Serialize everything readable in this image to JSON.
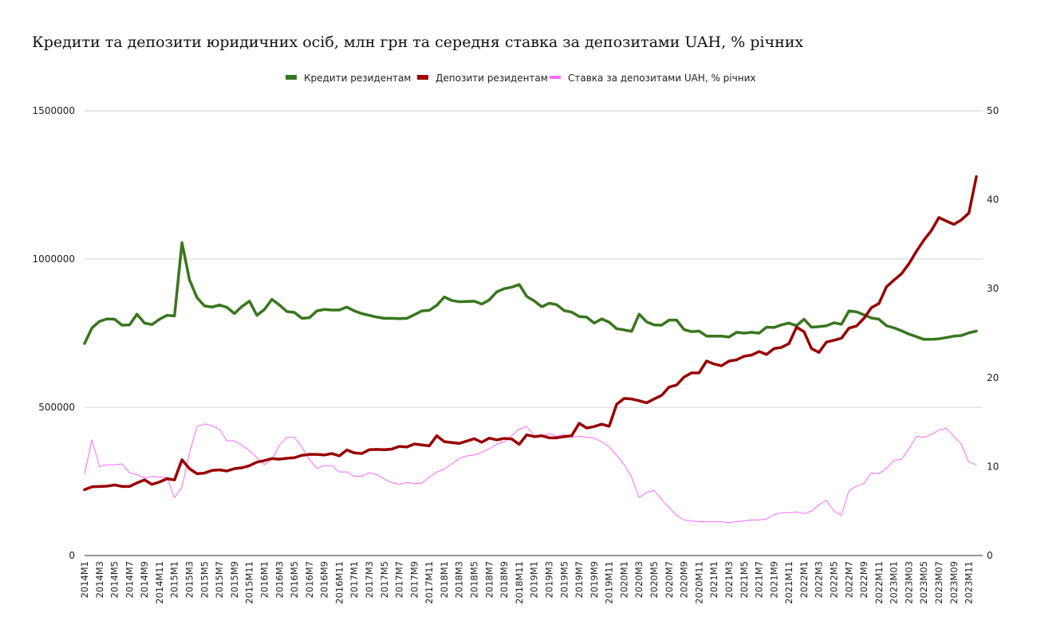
{
  "chart_data": {
    "type": "line",
    "title": "Кредити та депозити юридичних осіб, млн грн та середня ставка за депозитами UAH, % річних",
    "legend_position": "top-center",
    "x": [
      "2014M1",
      "2014M2",
      "2014M3",
      "2014M4",
      "2014M5",
      "2014M6",
      "2014M7",
      "2014M8",
      "2014M9",
      "2014M10",
      "2014M11",
      "2014M12",
      "2015M1",
      "2015M2",
      "2015M3",
      "2015M4",
      "2015M5",
      "2015M6",
      "2015M7",
      "2015M8",
      "2015M9",
      "2015M10",
      "2015M11",
      "2015M12",
      "2016M1",
      "2016M2",
      "2016M3",
      "2016M4",
      "2016M5",
      "2016M6",
      "2016M7",
      "2016M8",
      "2016M9",
      "2016M10",
      "2016M11",
      "2016M12",
      "2017M1",
      "2017M2",
      "2017M3",
      "2017M4",
      "2017M5",
      "2017M6",
      "2017M7",
      "2017M8",
      "2017M9",
      "2017M10",
      "2017M11",
      "2017M12",
      "2018M1",
      "2018M2",
      "2018M3",
      "2018M4",
      "2018M5",
      "2018M6",
      "2018M7",
      "2018M8",
      "2018M9",
      "2018M10",
      "2018M11",
      "2018M12",
      "2019M1",
      "2019M2",
      "2019M3",
      "2019M4",
      "2019M5",
      "2019M6",
      "2019M7",
      "2019M8",
      "2019M9",
      "2019M10",
      "2019M11",
      "2019M12",
      "2020M1",
      "2020M2",
      "2020M3",
      "2020M4",
      "2020M5",
      "2020M6",
      "2020M7",
      "2020M8",
      "2020M9",
      "2020M10",
      "2020M11",
      "2020M12",
      "2021M1",
      "2021M2",
      "2021M3",
      "2021M4",
      "2021M5",
      "2021M6",
      "2021M7",
      "2021M8",
      "2021M9",
      "2021M10",
      "2021M11",
      "2021M12",
      "2022M1",
      "2022M2",
      "2022M3",
      "2022M4",
      "2022M5",
      "2022M6",
      "2022M7",
      "2022M8",
      "2022M9",
      "2022M10",
      "2022M11",
      "2022M12",
      "2023M1",
      "2023M2",
      "2023M3",
      "2023M4",
      "2023M5",
      "2023M6",
      "2023M7",
      "2023M8",
      "2023M9",
      "2023M10",
      "2023M11",
      "2023M12"
    ],
    "x_tick_labels": [
      "2014M1",
      "2014M3",
      "2014M5",
      "2014M7",
      "2014M9",
      "2014M11",
      "2015M1",
      "2015M3",
      "2015M5",
      "2015M7",
      "2015M9",
      "2015M11",
      "2016M1",
      "2016M3",
      "2016M5",
      "2016M7",
      "2016M9",
      "2016M11",
      "2017M1",
      "2017M3",
      "2017M5",
      "2017M7",
      "2017M9",
      "2017M11",
      "2018M1",
      "2018M3",
      "2018M5",
      "2018M7",
      "2018M9",
      "2018M11",
      "2019M1",
      "2019M3",
      "2019M5",
      "2019M7",
      "2019M9",
      "2019M11",
      "2020M1",
      "2020M3",
      "2020M5",
      "2020M7",
      "2020M9",
      "2020M11",
      "2021M1",
      "2021M3",
      "2021M5",
      "2021M7",
      "2021M9",
      "2021M11",
      "2022M1",
      "2022M3",
      "2022M5",
      "2022M7",
      "2022M9",
      "2022M11",
      "2023M01",
      "2023M03",
      "2023M05",
      "2023M07",
      "2023M09",
      "2023M11"
    ],
    "y_left": {
      "min": 0,
      "max": 1500000,
      "ticks": [
        0,
        500000,
        1000000,
        1500000
      ],
      "tick_labels": [
        "0",
        "500000",
        "1000000",
        "1500000"
      ]
    },
    "y_right": {
      "min": 0,
      "max": 50,
      "ticks": [
        0,
        10,
        20,
        30,
        40,
        50
      ],
      "tick_labels": [
        "0",
        "10",
        "20",
        "30",
        "40",
        "50"
      ]
    },
    "grid": true,
    "series": [
      {
        "name": "Кредити резидентам",
        "axis": "left",
        "color": "#38761d",
        "width": 3.5,
        "values": [
          715000,
          768000,
          790000,
          798000,
          797000,
          777000,
          778000,
          814000,
          784000,
          779000,
          797000,
          810000,
          808000,
          1055000,
          930000,
          870000,
          842000,
          838000,
          845000,
          837000,
          816000,
          840000,
          858000,
          810000,
          830000,
          864000,
          845000,
          823000,
          820000,
          800000,
          802000,
          825000,
          830000,
          828000,
          828000,
          838000,
          825000,
          816000,
          810000,
          804000,
          800000,
          800000,
          799000,
          800000,
          812000,
          825000,
          827000,
          844000,
          872000,
          860000,
          856000,
          857000,
          858000,
          848000,
          862000,
          889000,
          900000,
          905000,
          914000,
          874000,
          859000,
          839000,
          851000,
          846000,
          826000,
          821000,
          806000,
          804000,
          784000,
          798000,
          787000,
          765000,
          761000,
          756000,
          814000,
          788000,
          778000,
          777000,
          794000,
          794000,
          762000,
          755000,
          757000,
          740000,
          740000,
          740000,
          737000,
          753000,
          750000,
          753000,
          750000,
          770000,
          769000,
          778000,
          784000,
          775000,
          797000,
          770000,
          772000,
          775000,
          785000,
          780000,
          825000,
          822000,
          812000,
          801000,
          797000,
          775000,
          768000,
          758000,
          747000,
          738000,
          729000,
          729000,
          731000,
          735000,
          740000,
          742000,
          751000,
          757000
        ]
      },
      {
        "name": "Депозити резидентам",
        "axis": "left",
        "color": "#990000",
        "width": 3.5,
        "values": [
          222000,
          232000,
          233000,
          234000,
          238000,
          233000,
          233000,
          245000,
          255000,
          240000,
          248000,
          259000,
          255000,
          323000,
          293000,
          276000,
          278000,
          287000,
          289000,
          285000,
          293000,
          296000,
          303000,
          315000,
          320000,
          327000,
          325000,
          328000,
          330000,
          338000,
          341000,
          341000,
          339000,
          344000,
          336000,
          356000,
          346000,
          344000,
          357000,
          358000,
          357000,
          359000,
          368000,
          366000,
          376000,
          373000,
          370000,
          404000,
          384000,
          381000,
          378000,
          386000,
          394000,
          382000,
          396000,
          390000,
          395000,
          393000,
          375000,
          407000,
          401000,
          404000,
          397000,
          397000,
          401000,
          404000,
          446000,
          430000,
          435000,
          443000,
          436000,
          510000,
          530000,
          528000,
          522000,
          515000,
          528000,
          540000,
          568000,
          575000,
          602000,
          616000,
          616000,
          656000,
          646000,
          640000,
          656000,
          660000,
          672000,
          676000,
          688000,
          678000,
          698000,
          702000,
          715000,
          770000,
          755000,
          698000,
          685000,
          720000,
          726000,
          733000,
          767000,
          774000,
          800000,
          836000,
          850000,
          906000,
          929000,
          950000,
          984000,
          1026000,
          1064000,
          1096000,
          1140000,
          1128000,
          1117000,
          1132000,
          1155000,
          1278000
        ]
      },
      {
        "name": "Ставка за депозитами UAH, % річних",
        "axis": "right",
        "color": "#ff66ff",
        "width": 1,
        "values": [
          9.2,
          13.0,
          10.0,
          10.2,
          10.2,
          10.3,
          9.3,
          9.1,
          8.7,
          8.9,
          8.8,
          8.8,
          6.5,
          7.7,
          11.5,
          14.5,
          14.8,
          14.6,
          14.2,
          12.9,
          12.9,
          12.4,
          11.8,
          11.0,
          10.2,
          10.8,
          12.4,
          13.3,
          13.3,
          12.2,
          10.8,
          9.8,
          10.1,
          10.1,
          9.4,
          9.4,
          8.9,
          8.9,
          9.3,
          9.1,
          8.6,
          8.2,
          8.0,
          8.2,
          8.1,
          8.1,
          8.8,
          9.4,
          9.7,
          10.3,
          10.9,
          11.2,
          11.3,
          11.6,
          12.0,
          12.5,
          12.8,
          13.5,
          14.2,
          14.5,
          13.5,
          13.4,
          13.7,
          13.4,
          13.6,
          13.3,
          13.4,
          13.3,
          13.2,
          12.8,
          12.2,
          11.3,
          10.2,
          8.8,
          6.5,
          7.1,
          7.3,
          6.3,
          5.4,
          4.5,
          4.0,
          3.9,
          3.8,
          3.8,
          3.8,
          3.8,
          3.7,
          3.8,
          3.9,
          4.0,
          4.0,
          4.1,
          4.6,
          4.8,
          4.8,
          4.9,
          4.7,
          5.0,
          5.7,
          6.2,
          5.0,
          4.5,
          7.3,
          7.8,
          8.1,
          9.3,
          9.2,
          9.8,
          10.7,
          10.8,
          12.0,
          13.4,
          13.3,
          13.6,
          14.1,
          14.3,
          13.4,
          12.5,
          10.5,
          10.2
        ]
      }
    ]
  }
}
